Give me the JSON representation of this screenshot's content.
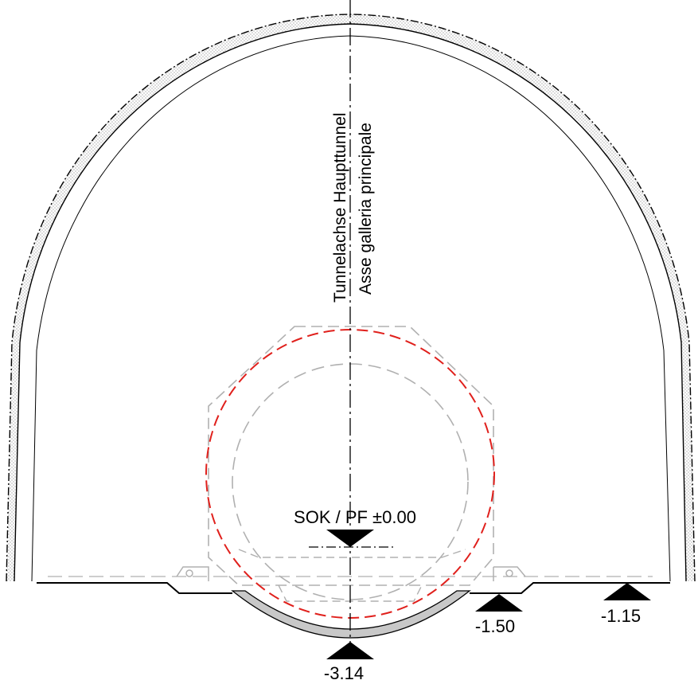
{
  "axis_label": {
    "line1": "Tunnelachse Haupttunnel",
    "line2": "Asse galleria principale"
  },
  "reference_level": {
    "label": "SOK / PF ±0.00"
  },
  "elevations": [
    {
      "id": "bottom",
      "label": "-3.14"
    },
    {
      "id": "right-bench",
      "label": "-1.50"
    },
    {
      "id": "right-floor",
      "label": "-1.15"
    }
  ],
  "colors": {
    "structure": "#000000",
    "outline_dashed": "#b0b0b0",
    "clearance_profile": "#e0201c",
    "invert_fill": "#c8c8c8"
  }
}
